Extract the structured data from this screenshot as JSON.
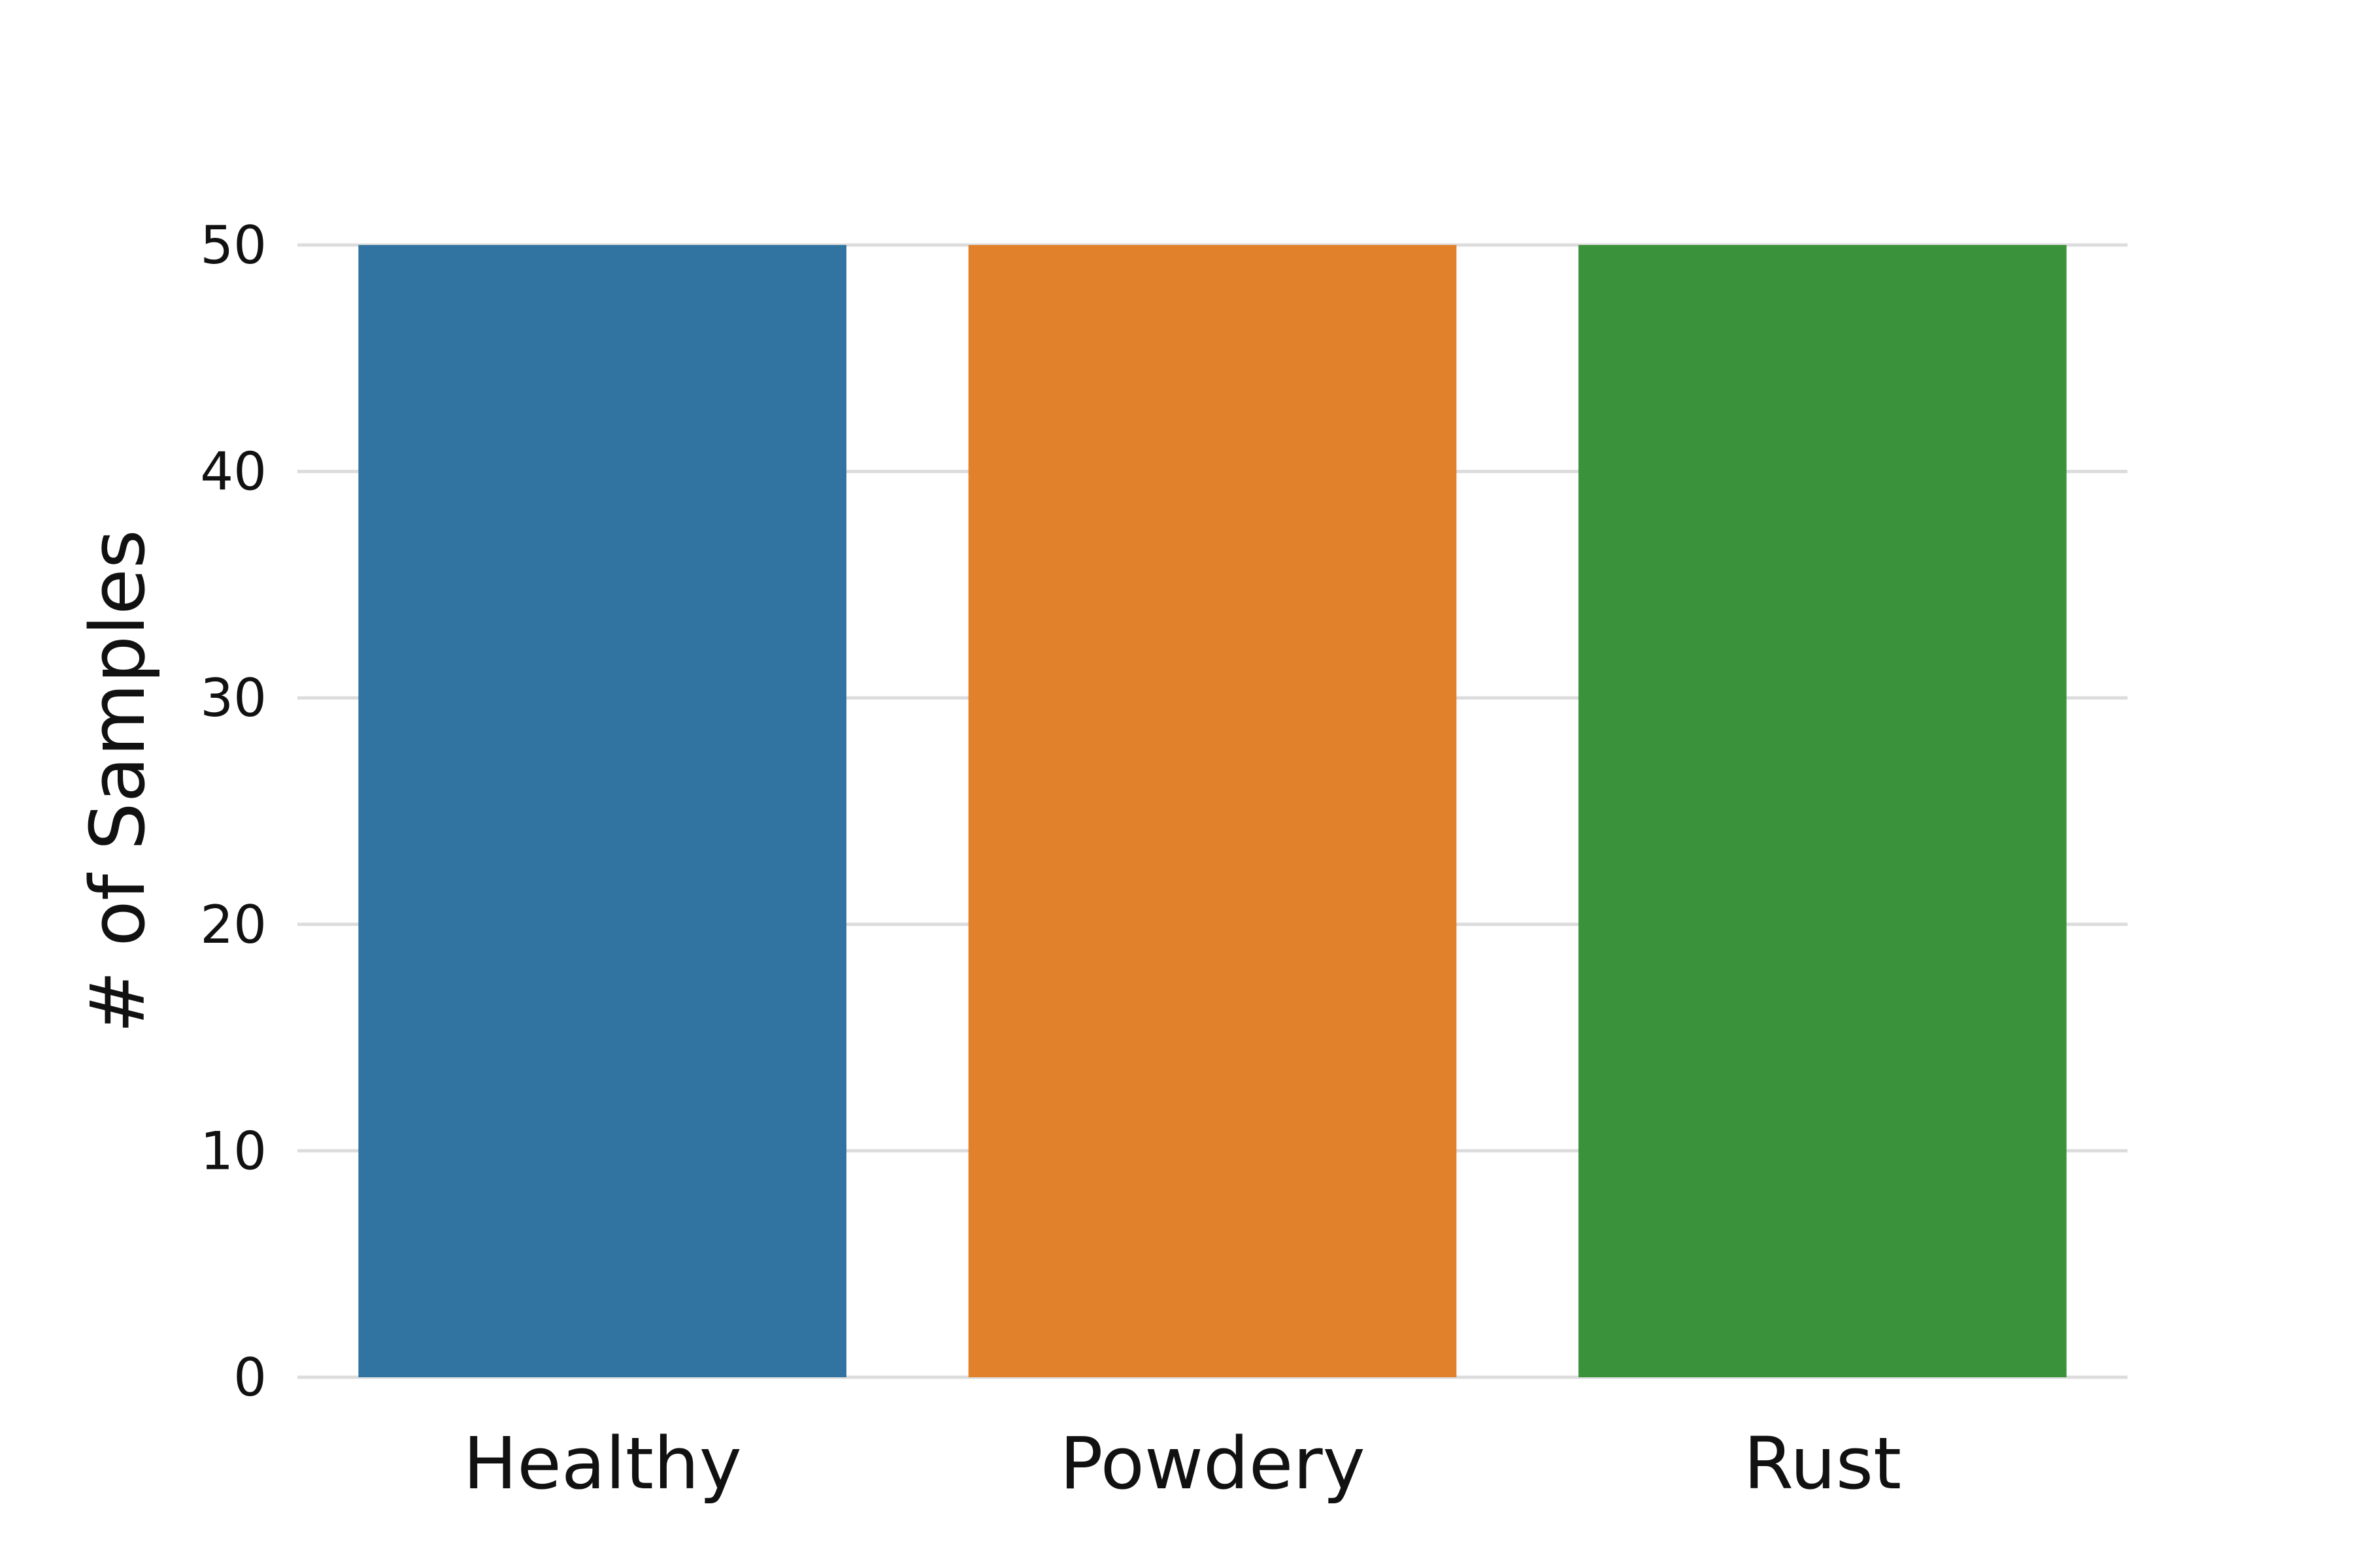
{
  "chart_data": {
    "type": "bar",
    "categories": [
      "Healthy",
      "Powdery",
      "Rust"
    ],
    "values": [
      50,
      50,
      50
    ],
    "colors": [
      "#3274a1",
      "#e1812c",
      "#3a923a"
    ],
    "title": "",
    "xlabel": "",
    "ylabel": "# of Samples",
    "ylim": [
      0,
      50
    ],
    "yticks": [
      0,
      10,
      20,
      30,
      40,
      50
    ],
    "grid": "horizontal",
    "legend": "none"
  }
}
